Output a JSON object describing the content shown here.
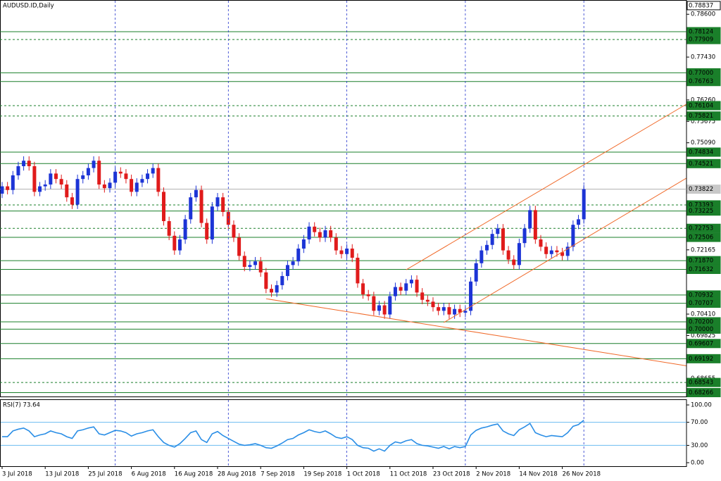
{
  "chart_data": [
    {
      "type": "candlestick",
      "title": "AUDUSD.ID,Daily",
      "categories": [
        "3 Jul 2018",
        null,
        null,
        null,
        null,
        null,
        null,
        null,
        "13 Jul 2018",
        null,
        null,
        null,
        null,
        null,
        null,
        null,
        "25 Jul 2018",
        null,
        null,
        null,
        null,
        null,
        null,
        null,
        "6 Aug 2018",
        null,
        null,
        null,
        null,
        null,
        null,
        null,
        "16 Aug 2018",
        null,
        null,
        null,
        null,
        null,
        null,
        null,
        "28 Aug 2018",
        null,
        null,
        null,
        null,
        null,
        null,
        null,
        "7 Sep 2018",
        null,
        null,
        null,
        null,
        null,
        null,
        null,
        "19 Sep 2018",
        null,
        null,
        null,
        null,
        null,
        null,
        null,
        "1 Oct 2018",
        null,
        null,
        null,
        null,
        null,
        null,
        null,
        "11 Oct 2018",
        null,
        null,
        null,
        null,
        null,
        null,
        null,
        "23 Oct 2018",
        null,
        null,
        null,
        null,
        null,
        null,
        null,
        "2 Nov 2018",
        null,
        null,
        null,
        null,
        null,
        null,
        null,
        "14 Nov 2018",
        null,
        null,
        null,
        null,
        null,
        null,
        null,
        "26 Nov 2018",
        null,
        null,
        null,
        null
      ],
      "open": [
        0.737,
        0.739,
        0.738,
        0.742,
        0.7445,
        0.746,
        0.7445,
        0.7375,
        0.739,
        0.7395,
        0.7425,
        0.741,
        0.7395,
        0.736,
        0.734,
        0.741,
        0.742,
        0.744,
        0.746,
        0.7395,
        0.7385,
        0.74,
        0.743,
        0.7425,
        0.741,
        0.7375,
        0.74,
        0.741,
        0.7425,
        0.744,
        0.7375,
        0.7295,
        0.7255,
        0.7215,
        0.7245,
        0.73,
        0.736,
        0.738,
        0.729,
        0.7245,
        0.7335,
        0.736,
        0.732,
        0.7285,
        0.725,
        0.72,
        0.717,
        0.7175,
        0.7185,
        0.7155,
        0.711,
        0.71,
        0.712,
        0.7145,
        0.7175,
        0.7185,
        0.722,
        0.7245,
        0.728,
        0.7265,
        0.725,
        0.727,
        0.725,
        0.7215,
        0.7205,
        0.722,
        0.7195,
        0.7125,
        0.7095,
        0.709,
        0.705,
        0.7065,
        0.704,
        0.709,
        0.7115,
        0.7105,
        0.7125,
        0.7135,
        0.71,
        0.708,
        0.7075,
        0.706,
        0.705,
        0.706,
        0.704,
        0.7055,
        0.7045,
        0.705,
        0.713,
        0.718,
        0.7215,
        0.723,
        0.726,
        0.7275,
        0.7215,
        0.719,
        0.7175,
        0.7235,
        0.7275,
        0.7325,
        0.7245,
        0.7225,
        0.7205,
        0.7215,
        0.721,
        0.72,
        0.7225,
        0.7285,
        0.73
      ],
      "high": [
        0.7402,
        0.7402,
        0.7432,
        0.7457,
        0.7472,
        0.7472,
        0.7457,
        0.7402,
        0.7407,
        0.7437,
        0.7437,
        0.7422,
        0.7407,
        0.7372,
        0.7422,
        0.7432,
        0.7452,
        0.7472,
        0.7472,
        0.7407,
        0.7412,
        0.7442,
        0.7442,
        0.7437,
        0.7422,
        0.7412,
        0.7422,
        0.7437,
        0.7452,
        0.7452,
        0.7387,
        0.7307,
        0.7267,
        0.7257,
        0.7312,
        0.7372,
        0.7392,
        0.7392,
        0.7302,
        0.7347,
        0.7372,
        0.7372,
        0.7332,
        0.7297,
        0.7262,
        0.7212,
        0.7187,
        0.7197,
        0.7197,
        0.7167,
        0.7122,
        0.7132,
        0.7157,
        0.7187,
        0.7197,
        0.7232,
        0.7257,
        0.7292,
        0.7292,
        0.7277,
        0.7282,
        0.7282,
        0.7262,
        0.7227,
        0.7232,
        0.7232,
        0.7207,
        0.7137,
        0.7107,
        0.7102,
        0.7077,
        0.7077,
        0.7102,
        0.7127,
        0.7127,
        0.7137,
        0.7147,
        0.7147,
        0.7112,
        0.7092,
        0.7087,
        0.7072,
        0.7072,
        0.7072,
        0.7067,
        0.7067,
        0.7062,
        0.7142,
        0.7192,
        0.7227,
        0.7242,
        0.7272,
        0.7287,
        0.7287,
        0.7227,
        0.7202,
        0.7247,
        0.7287,
        0.7337,
        0.7337,
        0.7257,
        0.7237,
        0.7227,
        0.7227,
        0.7222,
        0.7237,
        0.7297,
        0.7312,
        0.7394
      ],
      "low": [
        0.7358,
        0.7368,
        0.7368,
        0.7408,
        0.7433,
        0.7433,
        0.7363,
        0.7363,
        0.7378,
        0.7383,
        0.7398,
        0.7383,
        0.7348,
        0.7328,
        0.7328,
        0.7398,
        0.7408,
        0.7428,
        0.7383,
        0.7373,
        0.7373,
        0.7388,
        0.7413,
        0.7398,
        0.7363,
        0.7363,
        0.7388,
        0.7398,
        0.7413,
        0.7363,
        0.7283,
        0.7243,
        0.7203,
        0.7203,
        0.7233,
        0.7288,
        0.7348,
        0.7278,
        0.7233,
        0.7233,
        0.7323,
        0.7308,
        0.7273,
        0.7238,
        0.7188,
        0.7158,
        0.7158,
        0.7163,
        0.7143,
        0.7098,
        0.7088,
        0.7088,
        0.7108,
        0.7133,
        0.7163,
        0.7173,
        0.7208,
        0.7233,
        0.7253,
        0.7238,
        0.7238,
        0.7238,
        0.7203,
        0.7193,
        0.7193,
        0.7183,
        0.7113,
        0.7083,
        0.7078,
        0.7038,
        0.7038,
        0.7028,
        0.7028,
        0.7078,
        0.7093,
        0.7093,
        0.7113,
        0.7088,
        0.7068,
        0.7063,
        0.7048,
        0.7038,
        0.7038,
        0.7028,
        0.7028,
        0.7033,
        0.7033,
        0.7038,
        0.7118,
        0.7168,
        0.7203,
        0.7218,
        0.7248,
        0.7203,
        0.7178,
        0.7163,
        0.7163,
        0.7223,
        0.7263,
        0.7233,
        0.7213,
        0.7193,
        0.7193,
        0.7198,
        0.7188,
        0.7188,
        0.7213,
        0.7273,
        0.7288
      ],
      "close": [
        0.739,
        0.738,
        0.742,
        0.7445,
        0.746,
        0.7445,
        0.7375,
        0.739,
        0.7395,
        0.7425,
        0.741,
        0.7395,
        0.736,
        0.734,
        0.741,
        0.742,
        0.744,
        0.746,
        0.7395,
        0.7385,
        0.74,
        0.743,
        0.7425,
        0.741,
        0.7375,
        0.74,
        0.741,
        0.7425,
        0.744,
        0.7375,
        0.7295,
        0.7255,
        0.7215,
        0.7245,
        0.73,
        0.736,
        0.738,
        0.729,
        0.7245,
        0.7335,
        0.736,
        0.732,
        0.7285,
        0.725,
        0.72,
        0.717,
        0.7175,
        0.7185,
        0.7155,
        0.711,
        0.71,
        0.712,
        0.7145,
        0.7175,
        0.7185,
        0.722,
        0.7245,
        0.728,
        0.7265,
        0.725,
        0.727,
        0.725,
        0.7215,
        0.7205,
        0.722,
        0.7195,
        0.7125,
        0.7095,
        0.709,
        0.705,
        0.7065,
        0.704,
        0.709,
        0.7115,
        0.7105,
        0.7125,
        0.7135,
        0.71,
        0.708,
        0.7075,
        0.706,
        0.705,
        0.706,
        0.704,
        0.7055,
        0.7045,
        0.705,
        0.713,
        0.718,
        0.7215,
        0.723,
        0.726,
        0.7275,
        0.7215,
        0.719,
        0.7175,
        0.7235,
        0.7275,
        0.7325,
        0.7245,
        0.7225,
        0.7205,
        0.7215,
        0.721,
        0.72,
        0.7225,
        0.7285,
        0.73,
        0.73822
      ],
      "up_color": "#1c34d6",
      "down_color": "#e01b1b",
      "ylim": [
        0.6816,
        0.7897
      ],
      "yticks": [
        {
          "value": 0.786,
          "label": "0.78600"
        },
        {
          "value": 0.7743,
          "label": "0.77430"
        },
        {
          "value": 0.7626,
          "label": "0.76260"
        },
        0.75675,
        {
          "value": 0.7509,
          "label": "0.75090"
        },
        0.72165,
        {
          "value": 0.7041,
          "label": "0.70410"
        },
        0.69825,
        0.68655
      ],
      "levels": [
        {
          "value": 0.78837,
          "style": "max"
        },
        {
          "value": 0.78124,
          "style": "solid"
        },
        {
          "value": 0.77909,
          "style": "dashed"
        },
        {
          "value": 0.77,
          "label": "0.77000",
          "style": "solid"
        },
        {
          "value": 0.76763,
          "style": "solid"
        },
        {
          "value": 0.76104,
          "style": "dashed"
        },
        {
          "value": 0.75821,
          "style": "dashed"
        },
        {
          "value": 0.74834,
          "style": "solid"
        },
        {
          "value": 0.74521,
          "style": "solid"
        },
        {
          "value": 0.73822,
          "style": "current"
        },
        {
          "value": 0.73393,
          "style": "dashed"
        },
        {
          "value": 0.73225,
          "style": "solid"
        },
        {
          "value": 0.72753,
          "style": "dashed"
        },
        {
          "value": 0.72506,
          "style": "solid"
        },
        {
          "value": 0.7187,
          "label": "0.71870",
          "style": "solid"
        },
        {
          "value": 0.71632,
          "style": "solid"
        },
        {
          "value": 0.70932,
          "style": "solid"
        },
        {
          "value": 0.70707,
          "style": "solid"
        },
        {
          "value": 0.702,
          "label": "0.70200",
          "style": "solid"
        },
        {
          "value": 0.7,
          "label": "0.70000",
          "style": "solid"
        },
        {
          "value": 0.69607,
          "style": "solid"
        },
        {
          "value": 0.69192,
          "style": "solid"
        },
        {
          "value": 0.68543,
          "style": "dashed"
        },
        {
          "value": 0.68266,
          "style": "solid"
        }
      ],
      "level_color": "#1a7f2a",
      "trendlines": [
        {
          "x": [
            49,
            127
          ],
          "y": [
            0.7083,
            0.69
          ]
        },
        {
          "x": [
            82,
            127
          ],
          "y": [
            0.7018,
            0.7412
          ]
        },
        {
          "x": [
            75,
            127
          ],
          "y": [
            0.7162,
            0.7614
          ]
        }
      ],
      "trendline_color": "#f06a2a",
      "vgrid": [
        21,
        42,
        64,
        86,
        108
      ]
    },
    {
      "type": "line",
      "label": "RSI(7) 73.64",
      "color": "#2a8ee6",
      "values": [
        45,
        45,
        55,
        58,
        60,
        55,
        45,
        48,
        50,
        55,
        52,
        50,
        45,
        42,
        55,
        57,
        60,
        62,
        50,
        48,
        52,
        56,
        55,
        52,
        46,
        50,
        52,
        55,
        57,
        45,
        35,
        30,
        27,
        33,
        42,
        52,
        55,
        40,
        35,
        50,
        54,
        47,
        42,
        37,
        32,
        30,
        31,
        33,
        30,
        26,
        25,
        29,
        34,
        40,
        42,
        48,
        52,
        57,
        54,
        52,
        55,
        50,
        44,
        42,
        45,
        40,
        30,
        26,
        25,
        20,
        24,
        20,
        30,
        36,
        34,
        38,
        40,
        33,
        30,
        29,
        27,
        25,
        28,
        24,
        28,
        26,
        28,
        48,
        56,
        60,
        62,
        65,
        67,
        55,
        50,
        47,
        57,
        62,
        68,
        52,
        48,
        45,
        47,
        46,
        45,
        52,
        63,
        66,
        73.64
      ],
      "ylim": [
        0,
        100
      ],
      "yticks": [
        {
          "value": 100,
          "label": "100.00"
        },
        {
          "value": 70,
          "label": "70.00"
        },
        {
          "value": 30,
          "label": "30.00"
        },
        {
          "value": 0,
          "label": "0.00"
        }
      ],
      "levels": [
        70,
        30
      ],
      "level_color": "#6cbcf0"
    }
  ]
}
